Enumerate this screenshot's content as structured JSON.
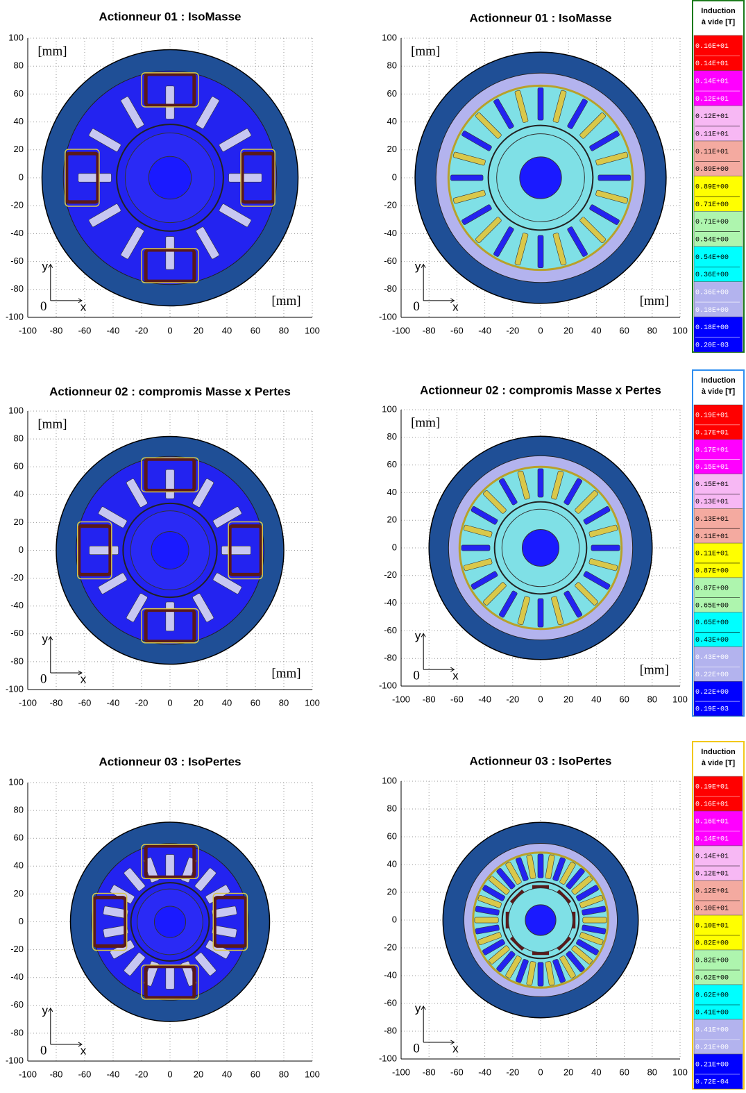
{
  "panels": [
    {
      "title": "Actionneur 01 : IsoMasse",
      "xlim": [
        -100,
        100
      ],
      "ylim": [
        -100,
        100
      ],
      "xticks": [
        -100,
        -80,
        -60,
        -40,
        -20,
        0,
        20,
        40,
        60,
        80,
        100
      ],
      "yticks": [
        -100,
        -80,
        -60,
        -40,
        -20,
        0,
        20,
        40,
        60,
        80,
        100
      ],
      "unit_top": "[mm]",
      "unit_bottom": "[mm]",
      "axis_y": "y",
      "axis_x": "x",
      "origin": "0"
    },
    {
      "title": "Actionneur 01 : IsoMasse",
      "xlim": [
        -100,
        100
      ],
      "ylim": [
        -100,
        100
      ],
      "xticks": [
        -100,
        -80,
        -60,
        -40,
        -20,
        0,
        20,
        40,
        60,
        80,
        100
      ],
      "yticks": [
        -100,
        -80,
        -60,
        -40,
        -20,
        0,
        20,
        40,
        60,
        80,
        100
      ],
      "unit_top": "[mm]",
      "unit_bottom": "[mm]",
      "axis_y": "y",
      "axis_x": "x",
      "origin": "0"
    },
    {
      "title": "Actionneur 02 : compromis Masse x Pertes",
      "xlim": [
        -100,
        100
      ],
      "ylim": [
        -100,
        100
      ],
      "xticks": [
        -100,
        -80,
        -60,
        -40,
        -20,
        0,
        20,
        40,
        60,
        80,
        100
      ],
      "yticks": [
        -100,
        -80,
        -60,
        -40,
        -20,
        0,
        20,
        40,
        60,
        80,
        100
      ],
      "unit_top": "[mm]",
      "unit_bottom": "[mm]",
      "axis_y": "y",
      "axis_x": "x",
      "origin": "0"
    },
    {
      "title": "Actionneur 02 : compromis Masse x Pertes",
      "xlim": [
        -100,
        100
      ],
      "ylim": [
        -100,
        100
      ],
      "xticks": [
        -100,
        -80,
        -60,
        -40,
        -20,
        0,
        20,
        40,
        60,
        80,
        100
      ],
      "yticks": [
        -100,
        -80,
        -60,
        -40,
        -20,
        0,
        20,
        40,
        60,
        80,
        100
      ],
      "unit_top": "[mm]",
      "unit_bottom": "[mm]",
      "axis_y": "y",
      "axis_x": "x",
      "origin": "0"
    },
    {
      "title": "Actionneur 03 : IsoPertes",
      "xlim": [
        -100,
        100
      ],
      "ylim": [
        -100,
        100
      ],
      "xticks": [
        -100,
        -80,
        -60,
        -40,
        -20,
        0,
        20,
        40,
        60,
        80,
        100
      ],
      "yticks": [
        -100,
        -80,
        -60,
        -40,
        -20,
        0,
        20,
        40,
        60,
        80,
        100
      ],
      "axis_y": "y",
      "axis_x": "x",
      "origin": "0"
    },
    {
      "title": "Actionneur 03 : IsoPertes",
      "xlim": [
        -100,
        100
      ],
      "ylim": [
        -100,
        100
      ],
      "xticks": [
        -100,
        -80,
        -60,
        -40,
        -20,
        0,
        20,
        40,
        60,
        80,
        100
      ],
      "yticks": [
        -100,
        -80,
        -60,
        -40,
        -20,
        0,
        20,
        40,
        60,
        80,
        100
      ],
      "axis_y": "y",
      "axis_x": "x",
      "origin": "0"
    }
  ],
  "legends": [
    {
      "title": [
        "Induction",
        "à vide [T]"
      ],
      "border": "#1a7a1a",
      "entries": [
        {
          "color": "#ff0000",
          "text": "#ffffff",
          "top": "0.16E+01",
          "bottom": "0.14E+01"
        },
        {
          "color": "#ff00ff",
          "text": "#ffffff",
          "top": "0.14E+01",
          "bottom": "0.12E+01"
        },
        {
          "color": "#f7b8f4",
          "text": "#000000",
          "top": "0.12E+01",
          "bottom": "0.11E+01"
        },
        {
          "color": "#f4aaa0",
          "text": "#000000",
          "top": "0.11E+01",
          "bottom": "0.89E+00"
        },
        {
          "color": "#ffff00",
          "text": "#000000",
          "top": "0.89E+00",
          "bottom": "0.71E+00"
        },
        {
          "color": "#aef5ae",
          "text": "#000000",
          "top": "0.71E+00",
          "bottom": "0.54E+00"
        },
        {
          "color": "#00ffff",
          "text": "#000000",
          "top": "0.54E+00",
          "bottom": "0.36E+00"
        },
        {
          "color": "#b3b3ee",
          "text": "#ffffff",
          "top": "0.36E+00",
          "bottom": "0.18E+00"
        },
        {
          "color": "#0000ff",
          "text": "#ffffff",
          "top": "0.18E+00",
          "bottom": "0.20E-03"
        }
      ]
    },
    {
      "title": [
        "Induction",
        "à vide [T]"
      ],
      "border": "#2e8ef0",
      "entries": [
        {
          "color": "#ff0000",
          "text": "#ffffff",
          "top": "0.19E+01",
          "bottom": "0.17E+01"
        },
        {
          "color": "#ff00ff",
          "text": "#ffffff",
          "top": "0.17E+01",
          "bottom": "0.15E+01"
        },
        {
          "color": "#f7b8f4",
          "text": "#000000",
          "top": "0.15E+01",
          "bottom": "0.13E+01"
        },
        {
          "color": "#f4aaa0",
          "text": "#000000",
          "top": "0.13E+01",
          "bottom": "0.11E+01"
        },
        {
          "color": "#ffff00",
          "text": "#000000",
          "top": "0.11E+01",
          "bottom": "0.87E+00"
        },
        {
          "color": "#aef5ae",
          "text": "#000000",
          "top": "0.87E+00",
          "bottom": "0.65E+00"
        },
        {
          "color": "#00ffff",
          "text": "#000000",
          "top": "0.65E+00",
          "bottom": "0.43E+00"
        },
        {
          "color": "#b3b3ee",
          "text": "#ffffff",
          "top": "0.43E+00",
          "bottom": "0.22E+00"
        },
        {
          "color": "#0000ff",
          "text": "#ffffff",
          "top": "0.22E+00",
          "bottom": "0.19E-03"
        }
      ]
    },
    {
      "title": [
        "Induction",
        "à vide [T]"
      ],
      "border": "#f2c81a",
      "entries": [
        {
          "color": "#ff0000",
          "text": "#ffffff",
          "top": "0.19E+01",
          "bottom": "0.16E+01"
        },
        {
          "color": "#ff00ff",
          "text": "#ffffff",
          "top": "0.16E+01",
          "bottom": "0.14E+01"
        },
        {
          "color": "#f7b8f4",
          "text": "#000000",
          "top": "0.14E+01",
          "bottom": "0.12E+01"
        },
        {
          "color": "#f4aaa0",
          "text": "#000000",
          "top": "0.12E+01",
          "bottom": "0.10E+01"
        },
        {
          "color": "#ffff00",
          "text": "#000000",
          "top": "0.10E+01",
          "bottom": "0.82E+00"
        },
        {
          "color": "#aef5ae",
          "text": "#000000",
          "top": "0.82E+00",
          "bottom": "0.62E+00"
        },
        {
          "color": "#00ffff",
          "text": "#000000",
          "top": "0.62E+00",
          "bottom": "0.41E+00"
        },
        {
          "color": "#b3b3ee",
          "text": "#ffffff",
          "top": "0.41E+00",
          "bottom": "0.21E+00"
        },
        {
          "color": "#0000ff",
          "text": "#ffffff",
          "top": "0.21E+00",
          "bottom": "0.72E-04"
        }
      ]
    }
  ]
}
